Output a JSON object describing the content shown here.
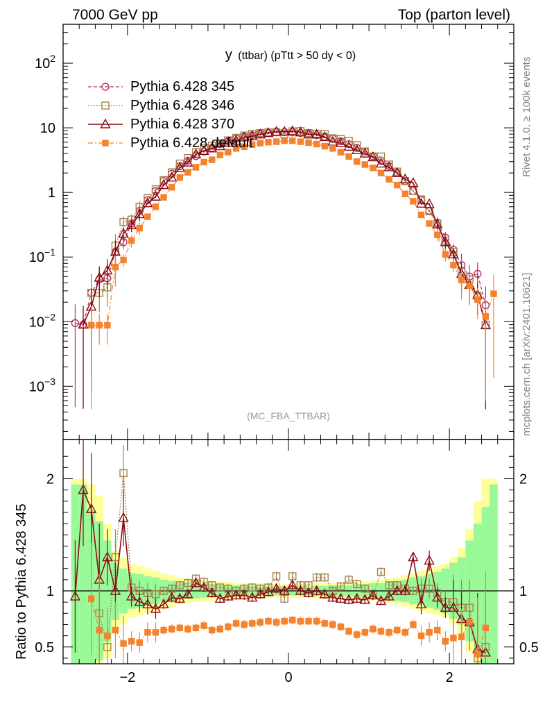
{
  "header": {
    "left": "7000 GeV pp",
    "right": "Top (parton level)"
  },
  "side_texts": {
    "rivet": "Rivet 4.1.0, ≥ 100k events",
    "mcplots": "mcplots.cern.ch [arXiv:2401.10621]"
  },
  "watermark": "(MC_FBA_TTBAR)",
  "plot_title": {
    "main": "y",
    "sub": "(ttbar) (pTtt > 50 dy < 0)"
  },
  "ratio_ylabel": "Ratio to Pythia 6.428 345",
  "colors": {
    "s345": "#b2305c",
    "s346": "#a6824b",
    "s370": "#8c0a14",
    "sdef": "#f5822d",
    "band_inner": "#99f999",
    "band_outer": "#ffff99"
  },
  "chart_data": [
    {
      "type": "line",
      "panel": "main",
      "yscale": "log",
      "xlim": [
        -2.8,
        2.8
      ],
      "ylim": [
        0.00015,
        400
      ],
      "xticks": [
        -2,
        0,
        2
      ],
      "yticks": [
        {
          "v": 100,
          "base": "10",
          "exp": "2"
        },
        {
          "v": 10,
          "text": "10"
        },
        {
          "v": 1,
          "text": "1"
        },
        {
          "v": 0.1,
          "base": "10",
          "exp": "−1"
        },
        {
          "v": 0.01,
          "base": "10",
          "exp": "−2"
        },
        {
          "v": 0.001,
          "base": "10",
          "exp": "−3"
        }
      ],
      "legend": [
        "Pythia 6.428 345",
        "Pythia 6.428 346",
        "Pythia 6.428 370",
        "Pythia 6.428 default"
      ],
      "bin_width": 0.1,
      "x": [
        -2.65,
        -2.55,
        -2.45,
        -2.35,
        -2.25,
        -2.15,
        -2.05,
        -1.95,
        -1.85,
        -1.75,
        -1.65,
        -1.55,
        -1.45,
        -1.35,
        -1.25,
        -1.15,
        -1.05,
        -0.95,
        -0.85,
        -0.75,
        -0.65,
        -0.55,
        -0.45,
        -0.35,
        -0.25,
        -0.15,
        -0.05,
        0.05,
        0.15,
        0.25,
        0.35,
        0.45,
        0.55,
        0.65,
        0.75,
        0.85,
        0.95,
        1.05,
        1.15,
        1.25,
        1.35,
        1.45,
        1.55,
        1.65,
        1.75,
        1.85,
        1.95,
        2.05,
        2.15,
        2.25,
        2.35,
        2.45,
        2.55
      ],
      "series": [
        {
          "name": "Pythia 6.428 345",
          "key": "s345",
          "values": [
            0.0095,
            0.009,
            0.028,
            0.045,
            0.047,
            0.12,
            0.17,
            0.33,
            0.52,
            0.76,
            1.05,
            1.5,
            1.95,
            2.55,
            3.1,
            3.65,
            4.3,
            4.9,
            5.6,
            6.2,
            6.8,
            7.3,
            7.7,
            8.1,
            8.3,
            8.5,
            8.6,
            8.5,
            8.3,
            8.1,
            7.7,
            7.3,
            6.8,
            6.2,
            5.6,
            4.9,
            4.3,
            3.65,
            3.1,
            2.55,
            2.0,
            1.5,
            1.05,
            0.76,
            0.52,
            0.34,
            0.2,
            0.13,
            0.075,
            0.05,
            0.055,
            0.018,
            null
          ]
        },
        {
          "name": "Pythia 6.428 346",
          "key": "s346",
          "values": [
            null,
            null,
            0.028,
            0.028,
            0.034,
            0.15,
            0.35,
            0.38,
            0.6,
            0.82,
            1.12,
            1.55,
            2.05,
            2.8,
            3.4,
            4.2,
            4.9,
            5.3,
            5.8,
            6.4,
            7.0,
            7.6,
            8.1,
            8.3,
            8.5,
            8.6,
            8.0,
            8.8,
            8.9,
            8.3,
            8.1,
            8.0,
            6.9,
            6.7,
            6.3,
            5.4,
            4.3,
            3.6,
            3.6,
            2.7,
            2.1,
            1.5,
            1.05,
            0.78,
            0.51,
            0.33,
            0.18,
            0.12,
            0.06,
            0.045,
            0.025,
            0.009,
            null
          ]
        },
        {
          "name": "Pythia 6.428 370",
          "key": "s370",
          "values": [
            null,
            0.009,
            0.017,
            0.048,
            0.062,
            0.12,
            0.23,
            0.31,
            0.46,
            0.68,
            0.86,
            1.3,
            1.7,
            2.4,
            2.9,
            3.9,
            4.4,
            4.8,
            5.2,
            5.9,
            6.3,
            7.1,
            7.4,
            7.9,
            8.3,
            8.7,
            8.7,
            8.9,
            8.5,
            7.9,
            7.9,
            7.2,
            6.1,
            5.8,
            5.1,
            4.5,
            4.0,
            3.5,
            2.8,
            2.45,
            2.0,
            1.6,
            1.4,
            0.67,
            0.66,
            0.32,
            0.17,
            0.11,
            0.055,
            0.037,
            0.026,
            0.0088,
            null
          ]
        },
        {
          "name": "Pythia 6.428 default",
          "key": "sdef",
          "values": [
            null,
            null,
            0.0088,
            0.0088,
            0.0088,
            0.07,
            0.09,
            0.18,
            0.28,
            0.42,
            0.6,
            0.84,
            1.2,
            1.7,
            2.05,
            2.45,
            2.95,
            3.2,
            3.8,
            4.2,
            4.8,
            5.1,
            5.5,
            5.8,
            6.0,
            6.1,
            6.3,
            6.3,
            6.1,
            5.9,
            5.6,
            5.2,
            4.8,
            4.2,
            3.6,
            3.0,
            2.7,
            2.4,
            2.0,
            1.6,
            1.3,
            0.95,
            0.73,
            0.45,
            0.33,
            0.22,
            0.11,
            0.075,
            0.044,
            0.036,
            0.022,
            0.012,
            0.027
          ]
        }
      ]
    },
    {
      "type": "line",
      "panel": "ratio",
      "ylabel": "Ratio to Pythia 6.428 345",
      "xlim": [
        -2.8,
        2.8
      ],
      "ylim": [
        0.35,
        2.35
      ],
      "yticks": [
        0.5,
        1,
        2
      ],
      "xticks": [
        -2,
        0,
        2
      ],
      "reference_line": 1,
      "band_outer_halfwidth": [
        1.0,
        1.0,
        0.95,
        0.85,
        0.6,
        0.36,
        0.3,
        0.24,
        0.22,
        0.2,
        0.18,
        0.16,
        0.14,
        0.12,
        0.11,
        0.1,
        0.09,
        0.09,
        0.08,
        0.08,
        0.07,
        0.07,
        0.07,
        0.07,
        0.06,
        0.06,
        0.06,
        0.06,
        0.06,
        0.06,
        0.07,
        0.07,
        0.07,
        0.07,
        0.08,
        0.08,
        0.09,
        0.09,
        0.1,
        0.11,
        0.12,
        0.14,
        0.16,
        0.18,
        0.2,
        0.22,
        0.24,
        0.3,
        0.38,
        0.55,
        0.8,
        1.0,
        1.0
      ],
      "band_inner_halfwidth": [
        0.95,
        0.95,
        0.72,
        0.62,
        0.45,
        0.26,
        0.2,
        0.16,
        0.15,
        0.13,
        0.12,
        0.1,
        0.09,
        0.08,
        0.07,
        0.07,
        0.06,
        0.06,
        0.05,
        0.05,
        0.05,
        0.045,
        0.045,
        0.04,
        0.04,
        0.04,
        0.04,
        0.04,
        0.04,
        0.04,
        0.045,
        0.045,
        0.05,
        0.05,
        0.05,
        0.06,
        0.06,
        0.07,
        0.07,
        0.08,
        0.09,
        0.1,
        0.12,
        0.13,
        0.15,
        0.17,
        0.2,
        0.25,
        0.3,
        0.45,
        0.6,
        0.75,
        0.95
      ],
      "series": [
        {
          "name": "Pythia 6.428 346",
          "key": "s346",
          "values": [
            null,
            null,
            null,
            0.8,
            0.5,
            1.3,
            2.05,
            1.03,
            1.0,
            0.98,
            0.97,
            1.0,
            1.02,
            1.05,
            1.07,
            1.11,
            1.08,
            1.05,
            1.03,
            1.02,
            1.0,
            1.02,
            1.03,
            1.02,
            1.03,
            1.13,
            0.93,
            1.13,
            1.05,
            1.05,
            1.12,
            1.12,
            1.0,
            1.04,
            1.1,
            1.06,
            1.02,
            0.96,
            1.17,
            1.05,
            1.05,
            1.02,
            1.0,
            1.02,
            1.02,
            0.98,
            0.9,
            0.9,
            0.85,
            0.85,
            0.4,
            0.5,
            null
          ]
        },
        {
          "name": "Pythia 6.428 370",
          "key": "s370",
          "values": [
            0.95,
            1.9,
            1.73,
            1.1,
            1.3,
            1.0,
            1.65,
            0.95,
            0.9,
            0.88,
            0.84,
            0.88,
            0.94,
            0.93,
            0.97,
            1.07,
            1.03,
            0.98,
            0.93,
            0.95,
            0.96,
            0.96,
            0.94,
            0.97,
            0.99,
            1.02,
            1.0,
            1.05,
            1.0,
            0.98,
            1.0,
            0.97,
            0.94,
            0.93,
            0.92,
            0.93,
            0.92,
            0.96,
            0.91,
            0.95,
            1.0,
            1.0,
            1.3,
            0.88,
            1.27,
            0.94,
            0.85,
            0.85,
            0.75,
            0.72,
            0.48,
            0.45,
            null
          ]
        },
        {
          "name": "Pythia 6.428 default",
          "key": "sdef",
          "values": [
            null,
            null,
            0.93,
            0.65,
            0.6,
            0.65,
            0.53,
            0.55,
            0.54,
            0.63,
            0.63,
            0.65,
            0.66,
            0.67,
            0.66,
            0.67,
            0.69,
            0.65,
            0.66,
            0.68,
            0.71,
            0.7,
            0.71,
            0.72,
            0.73,
            0.72,
            0.73,
            0.74,
            0.73,
            0.73,
            0.73,
            0.71,
            0.7,
            0.68,
            0.64,
            0.61,
            0.63,
            0.66,
            0.64,
            0.63,
            0.65,
            0.63,
            0.7,
            0.6,
            0.63,
            0.65,
            0.55,
            0.58,
            0.59,
            0.72,
            0.44,
            0.67,
            null
          ]
        }
      ]
    }
  ]
}
